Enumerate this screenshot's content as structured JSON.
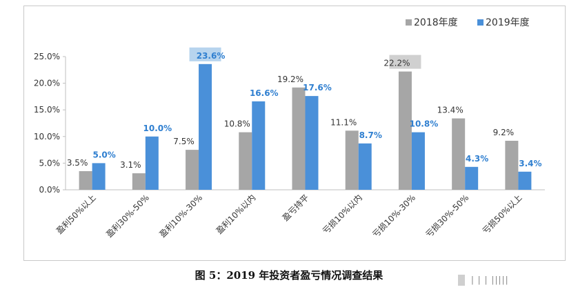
{
  "chart_data": {
    "type": "bar",
    "categories": [
      "盈利50%以上",
      "盈利30%-50%",
      "盈利10%-30%",
      "盈利10%以内",
      "盈亏持平",
      "亏损10%以内",
      "亏损10%-30%",
      "亏损30%-50%",
      "亏损50%以上"
    ],
    "series": [
      {
        "name": "2018年度",
        "color": "#a6a6a6",
        "values": [
          3.5,
          3.1,
          7.5,
          10.8,
          19.2,
          11.1,
          22.2,
          13.4,
          9.2
        ],
        "labels": [
          "3.5%",
          "3.1%",
          "7.5%",
          "10.8%",
          "19.2%",
          "11.1%",
          "22.2%",
          "13.4%",
          "9.2%"
        ]
      },
      {
        "name": "2019年度",
        "color": "#4a90d9",
        "values": [
          5.0,
          10.0,
          23.6,
          16.6,
          17.6,
          8.7,
          10.8,
          4.3,
          3.4
        ],
        "labels": [
          "5.0%",
          "10.0%",
          "23.6%",
          "16.6%",
          "17.6%",
          "8.7%",
          "10.8%",
          "4.3%",
          "3.4%"
        ]
      }
    ],
    "ylim": [
      0,
      25
    ],
    "yticks": [
      "0.0%",
      "5.0%",
      "10.0%",
      "15.0%",
      "20.0%",
      "25.0%"
    ],
    "legend_position": "top-right",
    "highlighted": [
      {
        "series": 1,
        "index": 2,
        "box_color": "#b7d4ee"
      },
      {
        "series": 0,
        "index": 6,
        "box_color": "#d0d0d0"
      }
    ]
  },
  "caption": "图 5：2019 年投资者盈亏情况调查结果",
  "watermark": "| | | |||||"
}
